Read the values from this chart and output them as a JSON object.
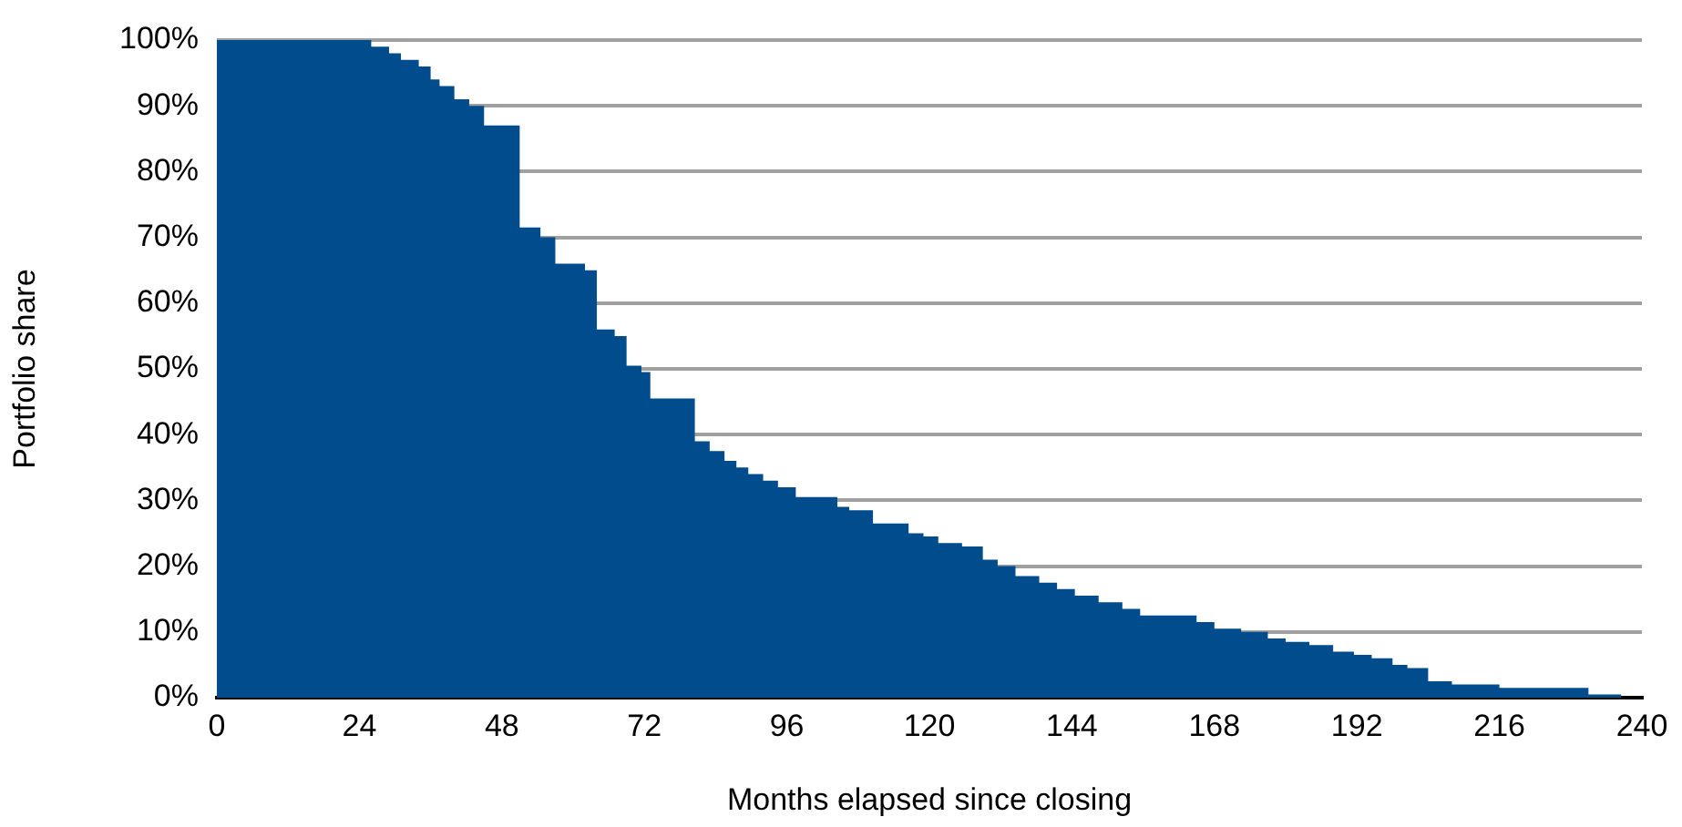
{
  "chart_data": {
    "type": "area",
    "xlabel": "Months elapsed since closing",
    "ylabel": "Portfolio share",
    "x": [
      0,
      26,
      26,
      29,
      29,
      31,
      31,
      34,
      34,
      36,
      36,
      37.5,
      37.5,
      40,
      40,
      42.5,
      42.5,
      45,
      45,
      51,
      51,
      54.5,
      54.5,
      57,
      57,
      62,
      62,
      64,
      64,
      67,
      67,
      69,
      69,
      71.5,
      71.5,
      73,
      73,
      80.5,
      80.5,
      83,
      83,
      85.5,
      85.5,
      87.5,
      87.5,
      89.5,
      89.5,
      92,
      92,
      94.5,
      94.5,
      97.5,
      97.5,
      104.5,
      104.5,
      106.5,
      106.5,
      110.5,
      110.5,
      116.5,
      116.5,
      119,
      119,
      121.5,
      121.5,
      125.5,
      125.5,
      129,
      129,
      131.5,
      131.5,
      134.5,
      134.5,
      138.5,
      138.5,
      141.5,
      141.5,
      144.5,
      144.5,
      148.5,
      148.5,
      152.5,
      152.5,
      155.5,
      155.5,
      165,
      165,
      168,
      168,
      172.5,
      172.5,
      177,
      177,
      180,
      180,
      184,
      184,
      188,
      188,
      191.5,
      191.5,
      194.5,
      194.5,
      198,
      198,
      200.5,
      200.5,
      204,
      204,
      208,
      208,
      216,
      216,
      231,
      231,
      236.5,
      236.5,
      240
    ],
    "series": [
      {
        "color": "#004c8c",
        "values": [
          100,
          100,
          99,
          99,
          98,
          98,
          97,
          97,
          96,
          96,
          94,
          94,
          93,
          93,
          91,
          91,
          90,
          90,
          87,
          87,
          71.5,
          71.5,
          70,
          70,
          66,
          66,
          65,
          65,
          56,
          56,
          55,
          55,
          50.5,
          50.5,
          49.5,
          49.5,
          45.5,
          45.5,
          39,
          39,
          37.5,
          37.5,
          36,
          36,
          35,
          35,
          34,
          34,
          33,
          33,
          32,
          32,
          30.5,
          30.5,
          29,
          29,
          28.5,
          28.5,
          26.5,
          26.5,
          25,
          25,
          24.5,
          24.5,
          23.5,
          23.5,
          23,
          23,
          21,
          21,
          20,
          20,
          18.5,
          18.5,
          17.5,
          17.5,
          16.5,
          16.5,
          15.5,
          15.5,
          14.5,
          14.5,
          13.5,
          13.5,
          12.5,
          12.5,
          11.5,
          11.5,
          10.5,
          10.5,
          10,
          10,
          9,
          9,
          8.5,
          8.5,
          8,
          8,
          7,
          7,
          6.5,
          6.5,
          6,
          6,
          5,
          5,
          4.5,
          4.5,
          2.5,
          2.5,
          2,
          2,
          1.5,
          1.5,
          0.5,
          0.5,
          0,
          0
        ]
      }
    ],
    "xlim": [
      0,
      240
    ],
    "xticks": [
      0,
      24,
      48,
      72,
      96,
      120,
      144,
      168,
      192,
      216,
      240
    ],
    "ylim": [
      0,
      100
    ],
    "yticks": [
      {
        "value": 0,
        "label": "0%"
      },
      {
        "value": 10,
        "label": "10%"
      },
      {
        "value": 20,
        "label": "20%"
      },
      {
        "value": 30,
        "label": "30%"
      },
      {
        "value": 40,
        "label": "40%"
      },
      {
        "value": 50,
        "label": "50%"
      },
      {
        "value": 60,
        "label": "60%"
      },
      {
        "value": 70,
        "label": "70%"
      },
      {
        "value": 80,
        "label": "80%"
      },
      {
        "value": 90,
        "label": "90%"
      },
      {
        "value": 100,
        "label": "100%"
      }
    ],
    "grid": "y",
    "legend": false
  }
}
